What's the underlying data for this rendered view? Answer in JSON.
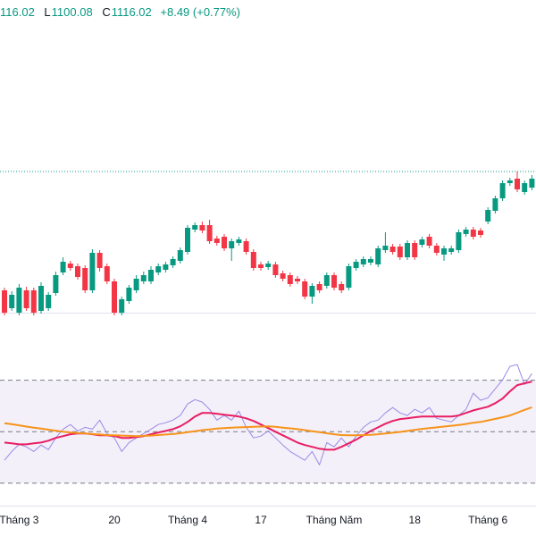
{
  "chart_data": {
    "type": "candlestick",
    "legend_text": [
      "116.02",
      "L",
      "1100.08",
      "C",
      "1116.02",
      "+8.49 (+0.77%)"
    ],
    "categories": [
      null,
      null,
      "Tháng 3",
      null,
      null,
      null,
      null,
      null,
      null,
      null,
      null,
      null,
      null,
      null,
      null,
      "20",
      null,
      null,
      null,
      null,
      null,
      null,
      null,
      null,
      null,
      "Tháng 4",
      null,
      null,
      null,
      null,
      null,
      null,
      null,
      null,
      null,
      "17",
      null,
      null,
      null,
      null,
      null,
      null,
      null,
      null,
      null,
      "Tháng Năm",
      null,
      null,
      null,
      null,
      null,
      null,
      null,
      null,
      null,
      null,
      "18",
      null,
      null,
      null,
      null,
      null,
      null,
      null,
      null,
      null,
      "Tháng 6",
      null,
      null,
      null,
      null,
      null,
      null
    ],
    "open": [
      983,
      963,
      958,
      983,
      983,
      960,
      963,
      980,
      1003,
      1013,
      1010,
      1008,
      983,
      1025,
      1010,
      993,
      958,
      971,
      983,
      993,
      993,
      1003,
      1006,
      1011,
      1016,
      1026,
      1051,
      1056,
      1056,
      1041,
      1043,
      1030,
      1036,
      1038,
      1026,
      1012,
      1009,
      1012,
      1002,
      1000,
      996,
      993,
      976,
      990,
      988,
      1000,
      990,
      986,
      1008,
      1012,
      1014,
      1012,
      1028,
      1032,
      1032,
      1020,
      1036,
      1034,
      1043,
      1033,
      1023,
      1026,
      1028,
      1046,
      1051,
      1050,
      1060,
      1072,
      1086,
      1103,
      1108,
      1093,
      1098
    ],
    "high": [
      986,
      982,
      990,
      987,
      986,
      992,
      981,
      1004,
      1020,
      1016,
      1013,
      1011,
      1029,
      1028,
      1013,
      996,
      976,
      989,
      1000,
      1004,
      1010,
      1013,
      1015,
      1021,
      1031,
      1056,
      1059,
      1060,
      1062,
      1044,
      1046,
      1041,
      1043,
      1041,
      1029,
      1015,
      1016,
      1015,
      1005,
      1003,
      999,
      996,
      991,
      993,
      1003,
      1003,
      993,
      1013,
      1018,
      1021,
      1021,
      1033,
      1048,
      1035,
      1035,
      1039,
      1039,
      1043,
      1046,
      1036,
      1033,
      1033,
      1051,
      1054,
      1054,
      1053,
      1076,
      1089,
      1106,
      1109,
      1116,
      1106,
      1112
    ],
    "low": [
      955,
      960,
      955,
      960,
      955,
      957,
      960,
      977,
      1000,
      1005,
      995,
      980,
      980,
      1004,
      990,
      955,
      955,
      968,
      980,
      990,
      990,
      1000,
      1003,
      1008,
      1013,
      1023,
      1048,
      1047,
      1035,
      1033,
      1027,
      1016,
      1033,
      1023,
      1005,
      1005,
      1006,
      997,
      993,
      987,
      990,
      973,
      968,
      980,
      985,
      983,
      980,
      983,
      1005,
      1009,
      1011,
      1009,
      1025,
      1023,
      1017,
      1017,
      1017,
      1031,
      1030,
      1022,
      1016,
      1023,
      1025,
      1043,
      1040,
      1042,
      1057,
      1069,
      1083,
      1100,
      1093,
      1090,
      1095
    ],
    "close": [
      958,
      978,
      986,
      963,
      958,
      988,
      978,
      1000,
      1015,
      1008,
      998,
      983,
      1025,
      1008,
      993,
      958,
      973,
      986,
      996,
      1000,
      1006,
      1010,
      1012,
      1018,
      1028,
      1053,
      1056,
      1050,
      1038,
      1036,
      1030,
      1038,
      1040,
      1026,
      1008,
      1008,
      1013,
      1000,
      996,
      990,
      993,
      976,
      988,
      983,
      1000,
      986,
      983,
      1010,
      1015,
      1018,
      1018,
      1030,
      1033,
      1026,
      1020,
      1036,
      1020,
      1040,
      1033,
      1025,
      1030,
      1030,
      1048,
      1051,
      1043,
      1045,
      1073,
      1086,
      1103,
      1106,
      1096,
      1103,
      1108
    ],
    "up_color": "#089981",
    "down_color": "#f23645",
    "ylim": [
      938,
      1308
    ],
    "last_price": 1116,
    "last_price_color": "#089981",
    "indicator": {
      "ylim": [
        23,
        81
      ],
      "levels": [
        70,
        50,
        30
      ],
      "band_color": "#7e57c2",
      "series": [
        {
          "color": "#9a8ae6",
          "width": 1,
          "values": [
            38.9,
            42.3,
            45.1,
            44.1,
            42.3,
            44.8,
            43.0,
            47.6,
            51.0,
            52.8,
            50.3,
            51.7,
            51.0,
            54.5,
            49.3,
            47.6,
            42.3,
            45.8,
            47.6,
            49.3,
            51.0,
            52.8,
            53.5,
            54.5,
            56.3,
            60.8,
            62.5,
            61.5,
            58.7,
            54.5,
            56.3,
            54.5,
            58.0,
            51.7,
            47.6,
            48.3,
            50.3,
            47.6,
            44.8,
            42.3,
            40.6,
            38.9,
            42.3,
            37.1,
            45.8,
            44.1,
            47.6,
            44.1,
            48.3,
            51.7,
            53.8,
            54.5,
            57.3,
            59.4,
            57.3,
            56.3,
            58.7,
            57.3,
            59.4,
            55.2,
            54.5,
            53.8,
            56.3,
            58.7,
            65.0,
            62.2,
            63.2,
            66.7,
            70.2,
            75.4,
            76.1,
            68.4,
            72.6
          ]
        },
        {
          "color": "#e91e63",
          "width": 2,
          "values": [
            45.8,
            45.5,
            45.1,
            45.1,
            45.5,
            45.8,
            46.5,
            47.6,
            48.3,
            49.0,
            49.3,
            49.3,
            49.0,
            48.6,
            48.6,
            48.3,
            47.6,
            47.6,
            47.9,
            48.3,
            49.0,
            49.7,
            50.3,
            51.0,
            52.1,
            53.8,
            55.9,
            57.3,
            57.3,
            57.0,
            56.6,
            56.3,
            55.9,
            55.2,
            54.2,
            52.8,
            51.4,
            50.0,
            48.6,
            47.2,
            45.8,
            44.8,
            44.1,
            43.4,
            43.0,
            43.0,
            44.1,
            45.5,
            46.9,
            48.6,
            50.3,
            51.7,
            53.1,
            54.2,
            54.9,
            55.2,
            55.6,
            55.9,
            55.9,
            55.9,
            55.9,
            55.9,
            56.3,
            57.3,
            58.3,
            59.0,
            59.7,
            61.1,
            62.9,
            65.7,
            68.1,
            68.8,
            69.5
          ]
        },
        {
          "color": "#f7931a",
          "width": 2,
          "values": [
            53.3,
            52.9,
            52.5,
            52.0,
            51.6,
            51.2,
            50.8,
            50.4,
            50.0,
            49.7,
            49.5,
            49.3,
            49.1,
            48.9,
            48.7,
            48.6,
            48.5,
            48.4,
            48.3,
            48.4,
            48.5,
            48.7,
            48.9,
            49.1,
            49.4,
            49.8,
            50.2,
            50.6,
            50.9,
            51.2,
            51.4,
            51.6,
            51.7,
            51.8,
            51.9,
            52.0,
            52.1,
            51.9,
            51.6,
            51.3,
            51.0,
            50.6,
            50.2,
            49.8,
            49.4,
            49.0,
            48.7,
            48.6,
            48.6,
            48.7,
            48.8,
            49.0,
            49.3,
            49.6,
            49.9,
            50.3,
            50.7,
            51.1,
            51.4,
            51.7,
            52.0,
            52.3,
            52.6,
            53.0,
            53.5,
            53.8,
            54.4,
            55.0,
            55.6,
            56.3,
            57.4,
            58.5,
            59.5
          ]
        }
      ]
    }
  }
}
